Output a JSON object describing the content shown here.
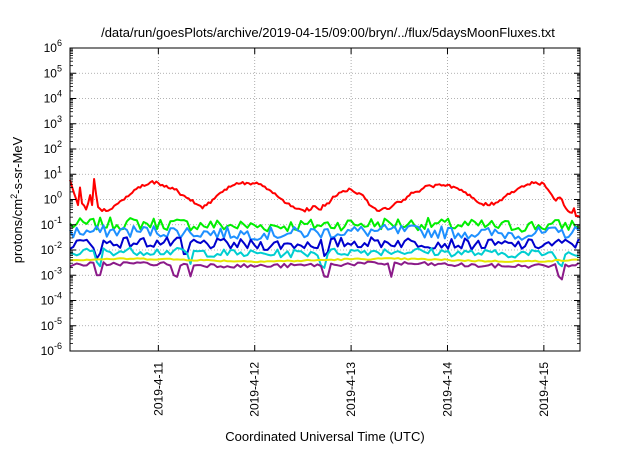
{
  "chart_data": {
    "type": "line",
    "title": "/data/run/goesPlots/archive/2019-04-15/09:00/bryn/../flux/5daysMoonFluxes.txt",
    "xlabel": "Coordinated Universal Time (UTC)",
    "ylabel_main": "protons/cm",
    "ylabel_sup": "2",
    "ylabel_rest": "-s-sr-MeV",
    "yscale": "log",
    "ylim": [
      1e-06,
      1000000.0
    ],
    "xlim": [
      "2019-04-10T02:00",
      "2019-04-15T09:00"
    ],
    "grid": true,
    "y_ticks": [
      {
        "value": 1e-06,
        "base": "10",
        "exp": "-6"
      },
      {
        "value": 1e-05,
        "base": "10",
        "exp": "-5"
      },
      {
        "value": 0.0001,
        "base": "10",
        "exp": "-4"
      },
      {
        "value": 0.001,
        "base": "10",
        "exp": "-3"
      },
      {
        "value": 0.01,
        "base": "10",
        "exp": "-2"
      },
      {
        "value": 0.1,
        "base": "10",
        "exp": "-1"
      },
      {
        "value": 1.0,
        "base": "10",
        "exp": "0"
      },
      {
        "value": 10.0,
        "base": "10",
        "exp": "1"
      },
      {
        "value": 100.0,
        "base": "10",
        "exp": "2"
      },
      {
        "value": 1000.0,
        "base": "10",
        "exp": "3"
      },
      {
        "value": 10000.0,
        "base": "10",
        "exp": "4"
      },
      {
        "value": 100000.0,
        "base": "10",
        "exp": "5"
      },
      {
        "value": 1000000.0,
        "base": "10",
        "exp": "6"
      }
    ],
    "x_ticks": [
      {
        "value": "2019-04-11T00:00",
        "label": "2019-4-11"
      },
      {
        "value": "2019-04-12T00:00",
        "label": "2019-4-12"
      },
      {
        "value": "2019-04-13T00:00",
        "label": "2019-4-13"
      },
      {
        "value": "2019-04-14T00:00",
        "label": "2019-4-14"
      },
      {
        "value": "2019-04-15T00:00",
        "label": "2019-4-15"
      }
    ],
    "series": [
      {
        "color": "#ff0000",
        "points": [
          [
            "2019-04-10T02:00",
            6
          ],
          [
            "2019-04-10T03:00",
            1.8
          ],
          [
            "2019-04-10T04:00",
            0.6
          ],
          [
            "2019-04-10T04:30",
            3
          ],
          [
            "2019-04-10T05:00",
            0.7
          ],
          [
            "2019-04-10T06:00",
            0.4
          ],
          [
            "2019-04-10T07:00",
            1.5
          ],
          [
            "2019-04-10T07:30",
            0.6
          ],
          [
            "2019-04-10T08:00",
            6.5
          ],
          [
            "2019-04-10T09:00",
            0.5
          ],
          [
            "2019-04-10T10:00",
            0.35
          ],
          [
            "2019-04-10T12:00",
            0.4
          ],
          [
            "2019-04-10T14:00",
            0.7
          ],
          [
            "2019-04-10T16:00",
            1.3
          ],
          [
            "2019-04-10T18:00",
            2.4
          ],
          [
            "2019-04-10T20:00",
            3.8
          ],
          [
            "2019-04-10T22:00",
            4.8
          ],
          [
            "2019-04-11T00:00",
            4.5
          ],
          [
            "2019-04-11T02:00",
            3.5
          ],
          [
            "2019-04-11T04:00",
            2.5
          ],
          [
            "2019-04-11T06:00",
            1.5
          ],
          [
            "2019-04-11T08:00",
            0.9
          ],
          [
            "2019-04-11T10:00",
            0.6
          ],
          [
            "2019-04-11T11:00",
            0.45
          ],
          [
            "2019-04-11T12:00",
            0.6
          ],
          [
            "2019-04-11T14:00",
            1.1
          ],
          [
            "2019-04-11T16:00",
            2.0
          ],
          [
            "2019-04-11T18:00",
            3.2
          ],
          [
            "2019-04-11T20:00",
            4.2
          ],
          [
            "2019-04-11T22:00",
            4.6
          ],
          [
            "2019-04-12T00:00",
            4.3
          ],
          [
            "2019-04-12T02:00",
            3.4
          ],
          [
            "2019-04-12T04:00",
            2.2
          ],
          [
            "2019-04-12T06:00",
            1.2
          ],
          [
            "2019-04-12T08:00",
            0.7
          ],
          [
            "2019-04-12T10:00",
            0.45
          ],
          [
            "2019-04-12T12:00",
            0.38
          ],
          [
            "2019-04-12T14:00",
            0.4
          ],
          [
            "2019-04-12T15:00",
            0.55
          ],
          [
            "2019-04-12T16:00",
            0.4
          ],
          [
            "2019-04-12T18:00",
            0.7
          ],
          [
            "2019-04-12T20:00",
            1.3
          ],
          [
            "2019-04-12T22:00",
            2.2
          ],
          [
            "2019-04-13T00:00",
            2.5
          ],
          [
            "2019-04-13T02:00",
            1.8
          ],
          [
            "2019-04-13T04:00",
            0.9
          ],
          [
            "2019-04-13T05:00",
            0.55
          ],
          [
            "2019-04-13T07:00",
            0.35
          ],
          [
            "2019-04-13T08:00",
            0.45
          ],
          [
            "2019-04-13T10:00",
            0.5
          ],
          [
            "2019-04-13T12:00",
            0.8
          ],
          [
            "2019-04-13T14:00",
            1.3
          ],
          [
            "2019-04-13T16:00",
            2.0
          ],
          [
            "2019-04-13T18:00",
            2.8
          ],
          [
            "2019-04-13T20:00",
            3.4
          ],
          [
            "2019-04-13T22:00",
            4.0
          ],
          [
            "2019-04-14T00:00",
            3.8
          ],
          [
            "2019-04-14T02:00",
            3.0
          ],
          [
            "2019-04-14T04:00",
            2.0
          ],
          [
            "2019-04-14T06:00",
            1.2
          ],
          [
            "2019-04-14T08:00",
            0.7
          ],
          [
            "2019-04-14T10:00",
            0.6
          ],
          [
            "2019-04-14T12:00",
            0.75
          ],
          [
            "2019-04-14T14:00",
            1.2
          ],
          [
            "2019-04-14T16:00",
            2.0
          ],
          [
            "2019-04-14T18:00",
            3.0
          ],
          [
            "2019-04-14T20:00",
            4.0
          ],
          [
            "2019-04-14T22:00",
            4.8
          ],
          [
            "2019-04-15T00:00",
            4.2
          ],
          [
            "2019-04-15T01:00",
            2.5
          ],
          [
            "2019-04-15T02:00",
            1.5
          ],
          [
            "2019-04-15T03:00",
            0.9
          ],
          [
            "2019-04-15T04:00",
            1.2
          ],
          [
            "2019-04-15T05:00",
            0.6
          ],
          [
            "2019-04-15T06:00",
            0.35
          ],
          [
            "2019-04-15T07:00",
            0.3
          ],
          [
            "2019-04-15T07:30",
            0.45
          ],
          [
            "2019-04-15T08:00",
            0.22
          ],
          [
            "2019-04-15T09:00",
            0.2
          ]
        ]
      },
      {
        "color": "#00ee00",
        "level": 0.1,
        "spread": 0.25,
        "dips": []
      },
      {
        "color": "#1e90ff",
        "level": 0.05,
        "spread": 0.25,
        "dips": []
      },
      {
        "color": "#0000cd",
        "level": 0.018,
        "spread": 0.22,
        "dips": [
          "2019-04-10T09:00",
          "2019-04-11T07:00",
          "2019-04-12T18:00"
        ]
      },
      {
        "color": "#00ced1",
        "level": 0.008,
        "spread": 0.16,
        "dips": [
          "2019-04-10T09:00",
          "2019-04-11T08:00",
          "2019-04-12T17:00",
          "2019-04-15T04:00"
        ]
      },
      {
        "color": "#e6e600",
        "level": 0.004,
        "spread": 0.03,
        "dips": []
      },
      {
        "color": "#8b1a89",
        "level": 0.0026,
        "spread": 0.08,
        "dips": [
          "2019-04-10T09:00",
          "2019-04-11T04:00",
          "2019-04-11T08:00",
          "2019-04-12T18:00",
          "2019-04-13T10:00",
          "2019-04-15T04:00"
        ]
      }
    ]
  }
}
